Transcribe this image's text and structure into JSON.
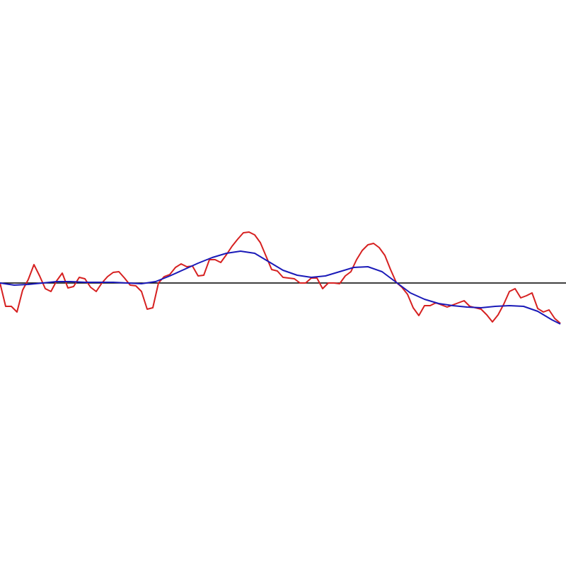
{
  "chart_data": {
    "type": "line",
    "xlim": [
      0,
      800
    ],
    "ylim": [
      -400,
      400
    ],
    "series": [
      {
        "color": "#d62020",
        "x": [
          0,
          8,
          16,
          24,
          32,
          40,
          48,
          56,
          64,
          72,
          80,
          88,
          96,
          104,
          112,
          120,
          128,
          136,
          144,
          152,
          160,
          168,
          176,
          184,
          192,
          200,
          208,
          216,
          224,
          232,
          240,
          248,
          256,
          264,
          272,
          280,
          288,
          296,
          304,
          312,
          320,
          328,
          336,
          344,
          352,
          360,
          368,
          376,
          384,
          392,
          400,
          408,
          416,
          424,
          432,
          440,
          448,
          456,
          464,
          472,
          480,
          488,
          496,
          504,
          512,
          520,
          528,
          536,
          544,
          552,
          560,
          568,
          576,
          584,
          592,
          600,
          608,
          616,
          624,
          632,
          640,
          648,
          656,
          664,
          672,
          680,
          688,
          696,
          704,
          712,
          720,
          728,
          736,
          744,
          752,
          760,
          768,
          776,
          784,
          792
        ],
        "values": [
          0,
          -33,
          -33,
          -41,
          -10,
          5,
          26,
          10,
          -8,
          -12,
          3,
          14,
          -7,
          -5,
          8,
          6,
          -6,
          -12,
          0,
          9,
          15,
          16,
          7,
          -3,
          -4,
          -12,
          -37,
          -35,
          0,
          9,
          12,
          22,
          27,
          23,
          24,
          10,
          11,
          33,
          33,
          29,
          40,
          52,
          62,
          71,
          72,
          68,
          57,
          38,
          19,
          17,
          8,
          7,
          6,
          0,
          0,
          7,
          7,
          -8,
          0,
          0,
          -1,
          10,
          16,
          33,
          46,
          54,
          56,
          50,
          39,
          19,
          1,
          -6,
          -16,
          -35,
          -46,
          -32,
          -32,
          -28,
          -31,
          -34,
          -31,
          -28,
          -25,
          -33,
          -35,
          -37,
          -45,
          -55,
          -45,
          -30,
          -12,
          -8,
          -21,
          -18,
          -14,
          -36,
          -41,
          -38,
          -50,
          -57
        ]
      },
      {
        "color": "#1a1ab8",
        "x": [
          0,
          20,
          40,
          60,
          80,
          100,
          120,
          140,
          160,
          180,
          200,
          220,
          240,
          260,
          280,
          300,
          320,
          340,
          360,
          380,
          400,
          420,
          440,
          460,
          480,
          500,
          520,
          540,
          560,
          580,
          600,
          620,
          640,
          660,
          680,
          700,
          720,
          740,
          760,
          780,
          792
        ],
        "values": [
          0,
          -3,
          -2,
          0,
          2,
          2,
          1,
          1,
          1,
          0,
          -1,
          2,
          10,
          19,
          28,
          36,
          42,
          45,
          42,
          30,
          18,
          11,
          8,
          10,
          16,
          22,
          23,
          16,
          1,
          -14,
          -23,
          -29,
          -32,
          -34,
          -35,
          -33,
          -32,
          -33,
          -40,
          -52,
          -58
        ]
      }
    ]
  }
}
